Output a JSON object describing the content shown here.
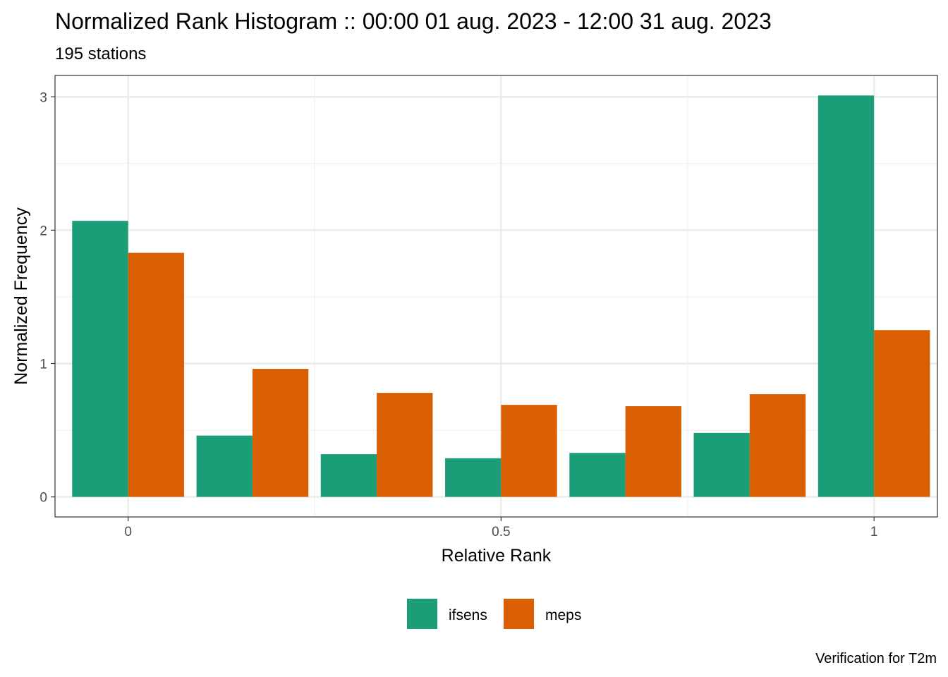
{
  "chart_data": {
    "type": "bar",
    "title": "Normalized Rank Histogram :: 00:00 01 aug. 2023 - 12:00 31 aug. 2023",
    "subtitle": "195 stations",
    "xlabel": "Relative Rank",
    "ylabel": "Normalized Frequency",
    "caption": "Verification for T2m",
    "x": [
      0,
      0.1667,
      0.3333,
      0.5,
      0.6667,
      0.8333,
      1
    ],
    "series": [
      {
        "name": "ifsens",
        "color": "#1B9E77",
        "values": [
          2.07,
          0.46,
          0.32,
          0.29,
          0.33,
          0.48,
          3.01
        ]
      },
      {
        "name": "meps",
        "color": "#D95F02",
        "values": [
          1.83,
          0.96,
          0.78,
          0.69,
          0.68,
          0.77,
          1.25
        ]
      }
    ],
    "xlim": [
      -0.098,
      1.085
    ],
    "ylim": [
      -0.15,
      3.16
    ],
    "xticks": [
      {
        "value": 0,
        "label": "0"
      },
      {
        "value": 0.5,
        "label": "0.5"
      },
      {
        "value": 1,
        "label": "1"
      }
    ],
    "yticks": [
      {
        "value": 0,
        "label": "0"
      },
      {
        "value": 1,
        "label": "1"
      },
      {
        "value": 2,
        "label": "2"
      },
      {
        "value": 3,
        "label": "3"
      }
    ],
    "yminor": [
      0.5,
      1.5,
      2.5
    ],
    "xminor": [
      0.25,
      0.75
    ],
    "grid": true,
    "legend_position": "bottom"
  }
}
